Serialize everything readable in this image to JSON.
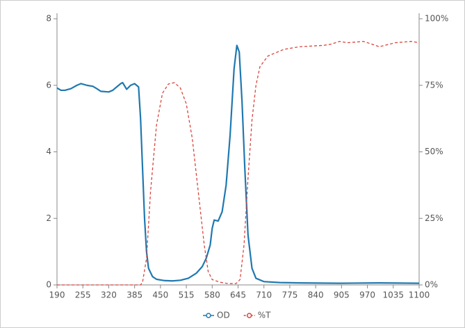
{
  "chart_data": {
    "type": "line",
    "xlim": [
      190,
      1100
    ],
    "xticks": [
      190,
      255,
      320,
      385,
      450,
      515,
      580,
      645,
      710,
      775,
      840,
      905,
      970,
      1035,
      1100
    ],
    "ylim": [
      0,
      8
    ],
    "yticks": [
      0,
      2,
      4,
      6,
      8
    ],
    "y2lim": [
      0,
      100
    ],
    "y2ticks": [
      {
        "value": 0,
        "label": "0%"
      },
      {
        "value": 25,
        "label": "25%"
      },
      {
        "value": 50,
        "label": "50%"
      },
      {
        "value": 75,
        "label": "75%"
      },
      {
        "value": 100,
        "label": "100%"
      }
    ],
    "legend": "bottom",
    "series": [
      {
        "name": "OD",
        "color": "#1f78b0",
        "dash": false,
        "x": [
          190,
          200,
          210,
          225,
          240,
          250,
          265,
          280,
          290,
          300,
          320,
          330,
          340,
          350,
          355,
          365,
          375,
          385,
          395,
          400,
          405,
          410,
          415,
          420,
          430,
          440,
          460,
          480,
          500,
          520,
          540,
          555,
          565,
          575,
          580,
          585,
          595,
          605,
          615,
          625,
          635,
          642,
          648,
          655,
          662,
          670,
          680,
          690,
          710,
          750,
          800,
          900,
          1000,
          1100
        ],
        "values": [
          5.92,
          5.85,
          5.85,
          5.9,
          6.0,
          6.05,
          6.0,
          5.97,
          5.9,
          5.82,
          5.8,
          5.85,
          5.95,
          6.05,
          6.08,
          5.88,
          6.0,
          6.05,
          5.95,
          5.0,
          3.5,
          2.0,
          1.0,
          0.5,
          0.25,
          0.17,
          0.13,
          0.12,
          0.14,
          0.2,
          0.35,
          0.55,
          0.8,
          1.2,
          1.7,
          1.95,
          1.92,
          2.2,
          3.0,
          4.5,
          6.5,
          7.2,
          7.0,
          5.5,
          3.5,
          1.5,
          0.5,
          0.2,
          0.1,
          0.07,
          0.06,
          0.05,
          0.06,
          0.05
        ]
      },
      {
        "name": "%T",
        "color": "#d9453d",
        "dash": true,
        "axis": "y2",
        "x": [
          190,
          300,
          400,
          405,
          415,
          425,
          440,
          455,
          470,
          485,
          500,
          515,
          530,
          545,
          560,
          570,
          580,
          600,
          620,
          640,
          650,
          660,
          670,
          680,
          690,
          700,
          720,
          760,
          800,
          860,
          880,
          900,
          920,
          960,
          1000,
          1040,
          1080,
          1100
        ],
        "values": [
          0,
          0,
          0,
          1,
          10,
          35,
          60,
          72,
          75.5,
          76,
          74,
          68,
          55,
          35,
          15,
          5,
          2,
          1,
          0.5,
          0.5,
          2,
          15,
          40,
          62,
          75,
          82,
          86,
          88.5,
          89.5,
          90,
          90.5,
          91.5,
          91,
          91.5,
          89.5,
          91,
          91.5,
          91
        ]
      }
    ]
  }
}
